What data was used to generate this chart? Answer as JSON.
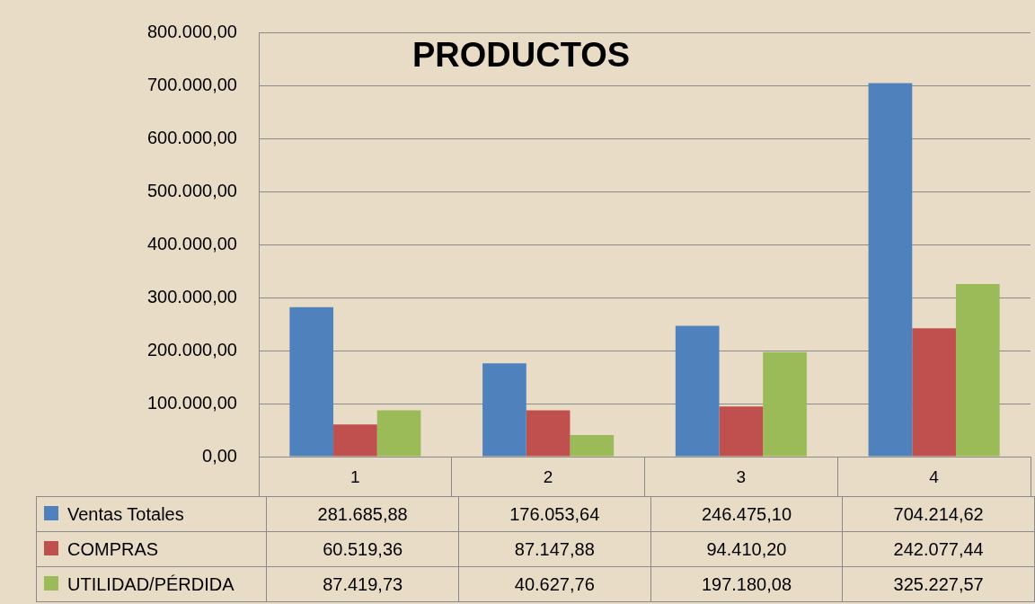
{
  "chart_data": {
    "type": "bar",
    "title": "PRODUCTOS",
    "categories": [
      "1",
      "2",
      "3",
      "4"
    ],
    "series": [
      {
        "name": "Ventas Totales",
        "color": "#4f81bd",
        "values": [
          281685.88,
          176053.64,
          246475.1,
          704214.62
        ],
        "value_labels": [
          "281.685,88",
          "176.053,64",
          "246.475,10",
          "704.214,62"
        ]
      },
      {
        "name": "COMPRAS",
        "color": "#c0504d",
        "values": [
          60519.36,
          87147.88,
          94410.2,
          242077.44
        ],
        "value_labels": [
          "60.519,36",
          "87.147,88",
          "94.410,20",
          "242.077,44"
        ]
      },
      {
        "name": "UTILIDAD/PÉRDIDA",
        "color": "#9bbb59",
        "values": [
          87419.73,
          40627.76,
          197180.08,
          325227.57
        ],
        "value_labels": [
          "87.419,73",
          "40.627,76",
          "197.180,08",
          "325.227,57"
        ]
      }
    ],
    "ylim": [
      0,
      800000
    ],
    "yticks": [
      {
        "value": 0,
        "label": "0,00"
      },
      {
        "value": 100000,
        "label": "100.000,00"
      },
      {
        "value": 200000,
        "label": "200.000,00"
      },
      {
        "value": 300000,
        "label": "300.000,00"
      },
      {
        "value": 400000,
        "label": "400.000,00"
      },
      {
        "value": 500000,
        "label": "500.000,00"
      },
      {
        "value": 600000,
        "label": "600.000,00"
      },
      {
        "value": 700000,
        "label": "700.000,00"
      },
      {
        "value": 800000,
        "label": "800.000,00"
      }
    ],
    "grid": "y",
    "legend": "bottom"
  }
}
